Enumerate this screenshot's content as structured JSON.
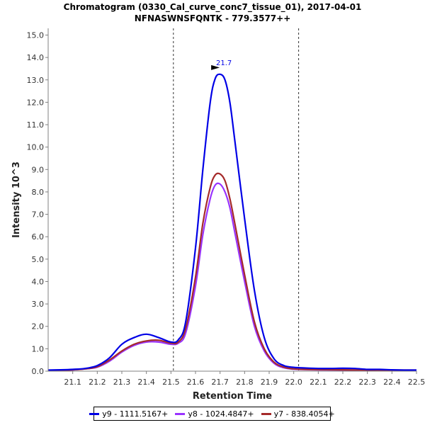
{
  "chart_data": {
    "type": "line",
    "title": "Chromatogram (0330_Cal_curve_conc7_tissue_01), 2017-04-01",
    "subtitle": "NFNASWNSFQNTK - 779.3577++",
    "xlabel": "Retention Time",
    "ylabel": "Intensity 10^3",
    "xlim": [
      21.0,
      22.5
    ],
    "ylim": [
      0,
      15.3
    ],
    "xticks": [
      21.1,
      21.2,
      21.3,
      21.4,
      21.5,
      21.6,
      21.7,
      21.8,
      21.9,
      22.0,
      22.1,
      22.2,
      22.3,
      22.4,
      22.5
    ],
    "yticks": [
      0.0,
      1.0,
      2.0,
      3.0,
      4.0,
      5.0,
      6.0,
      7.0,
      8.0,
      9.0,
      10.0,
      11.0,
      12.0,
      13.0,
      14.0,
      15.0
    ],
    "boundaries": [
      21.51,
      22.02
    ],
    "peak_annotation": {
      "label": "21.7",
      "x": 21.71,
      "y": 13.25
    },
    "legend_position": "bottom",
    "series": [
      {
        "name": "y9 - 1111.5167+",
        "color": "#0000e6",
        "x": [
          21.0,
          21.05,
          21.1,
          21.15,
          21.2,
          21.25,
          21.3,
          21.35,
          21.4,
          21.45,
          21.5,
          21.53,
          21.56,
          21.6,
          21.63,
          21.66,
          21.68,
          21.7,
          21.72,
          21.74,
          21.76,
          21.8,
          21.84,
          21.88,
          21.92,
          21.96,
          22.0,
          22.05,
          22.1,
          22.15,
          22.2,
          22.25,
          22.3,
          22.35,
          22.4,
          22.45,
          22.5
        ],
        "values": [
          0.05,
          0.06,
          0.08,
          0.12,
          0.25,
          0.6,
          1.2,
          1.5,
          1.65,
          1.5,
          1.3,
          1.4,
          2.2,
          5.5,
          9.0,
          12.0,
          13.05,
          13.25,
          13.0,
          12.0,
          10.3,
          6.8,
          3.6,
          1.5,
          0.55,
          0.25,
          0.17,
          0.14,
          0.12,
          0.12,
          0.13,
          0.12,
          0.08,
          0.08,
          0.06,
          0.05,
          0.05
        ]
      },
      {
        "name": "y8 - 1024.4847+",
        "color": "#9933ff",
        "x": [
          21.0,
          21.05,
          21.1,
          21.15,
          21.2,
          21.25,
          21.3,
          21.35,
          21.4,
          21.45,
          21.5,
          21.53,
          21.56,
          21.6,
          21.63,
          21.66,
          21.68,
          21.7,
          21.72,
          21.74,
          21.76,
          21.8,
          21.84,
          21.88,
          21.92,
          21.96,
          22.0,
          22.05,
          22.1,
          22.2,
          22.3,
          22.4,
          22.5
        ],
        "values": [
          0.03,
          0.04,
          0.06,
          0.1,
          0.18,
          0.45,
          0.85,
          1.15,
          1.3,
          1.3,
          1.2,
          1.25,
          1.7,
          3.8,
          6.1,
          7.7,
          8.3,
          8.35,
          8.0,
          7.3,
          6.2,
          4.0,
          2.0,
          0.9,
          0.35,
          0.15,
          0.09,
          0.07,
          0.06,
          0.05,
          0.05,
          0.04,
          0.04
        ]
      },
      {
        "name": "y7 - 838.4054+",
        "color": "#a52a2a",
        "x": [
          21.0,
          21.05,
          21.1,
          21.15,
          21.2,
          21.25,
          21.3,
          21.35,
          21.4,
          21.45,
          21.5,
          21.53,
          21.56,
          21.6,
          21.63,
          21.66,
          21.68,
          21.7,
          21.72,
          21.74,
          21.76,
          21.8,
          21.84,
          21.88,
          21.92,
          21.96,
          22.0,
          22.05,
          22.1,
          22.2,
          22.3,
          22.4,
          22.5
        ],
        "values": [
          0.03,
          0.04,
          0.06,
          0.1,
          0.2,
          0.5,
          0.9,
          1.2,
          1.35,
          1.38,
          1.25,
          1.3,
          1.9,
          4.2,
          6.6,
          8.2,
          8.75,
          8.8,
          8.5,
          7.7,
          6.6,
          4.3,
          2.2,
          1.0,
          0.4,
          0.18,
          0.1,
          0.08,
          0.07,
          0.06,
          0.05,
          0.05,
          0.05
        ]
      }
    ]
  }
}
